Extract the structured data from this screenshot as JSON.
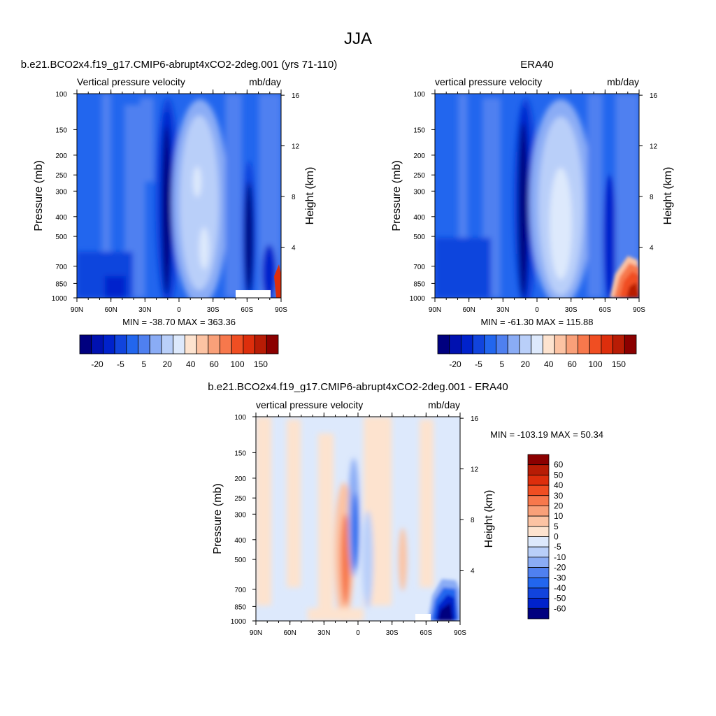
{
  "page_title": "JJA",
  "chart_data": [
    {
      "type": "heatmap",
      "title": "b.e21.BCO2x4.f19_g17.CMIP6-abrupt4xCO2-2deg.001 (yrs 71-110)",
      "left_label": "Vertical pressure velocity",
      "right_label": "mb/day",
      "ylabel": "Pressure (mb)",
      "ylabel_right": "Height (km)",
      "x_ticks": [
        "90N",
        "60N",
        "30N",
        "0",
        "30S",
        "60S",
        "90S"
      ],
      "xlim": [
        90,
        -90
      ],
      "y_ticks": [
        100,
        150,
        200,
        250,
        300,
        400,
        500,
        700,
        850,
        1000
      ],
      "ylim": [
        100,
        1000
      ],
      "y_log": true,
      "right_ticks": [
        16,
        12,
        8,
        4
      ],
      "stats": "MIN = -38.70  MAX = 363.36",
      "colorbar_labels": [
        "-20",
        "-5",
        "5",
        "20",
        "40",
        "60",
        "100",
        "150"
      ],
      "colorbar_colors": [
        "#00007f",
        "#0011b0",
        "#0022cc",
        "#1144dd",
        "#2266ee",
        "#4f80f0",
        "#8aacf5",
        "#b9cff9",
        "#dde9fc",
        "#fde3cf",
        "#fcc3a3",
        "#f9a079",
        "#f7784c",
        "#f04e22",
        "#dd2e0c",
        "#b81c05",
        "#8b0000"
      ],
      "field_description_colors": {
        "background": "#2266ee",
        "strong_ascent": "#00007f",
        "weak_descent": "#c7dcfb"
      }
    },
    {
      "type": "heatmap",
      "title": "ERA40",
      "left_label": "vertical pressure velocity",
      "right_label": "mb/day",
      "ylabel": "Pressure (mb)",
      "ylabel_right": "Height (km)",
      "x_ticks": [
        "90N",
        "60N",
        "30N",
        "0",
        "30S",
        "60S",
        "90S"
      ],
      "xlim": [
        90,
        -90
      ],
      "y_ticks": [
        100,
        150,
        200,
        250,
        300,
        400,
        500,
        700,
        850,
        1000
      ],
      "ylim": [
        100,
        1000
      ],
      "y_log": true,
      "right_ticks": [
        16,
        12,
        8,
        4
      ],
      "stats": "MIN = -61.30  MAX = 115.88",
      "colorbar_labels": [
        "-20",
        "-5",
        "5",
        "20",
        "40",
        "60",
        "100",
        "150"
      ],
      "colorbar_colors": [
        "#00007f",
        "#0011b0",
        "#0022cc",
        "#1144dd",
        "#2266ee",
        "#4f80f0",
        "#8aacf5",
        "#b9cff9",
        "#dde9fc",
        "#fde3cf",
        "#fcc3a3",
        "#f9a079",
        "#f7784c",
        "#f04e22",
        "#dd2e0c",
        "#b81c05",
        "#8b0000"
      ]
    },
    {
      "type": "heatmap",
      "title": "b.e21.BCO2x4.f19_g17.CMIP6-abrupt4xCO2-2deg.001 - ERA40",
      "left_label": "vertical pressure velocity",
      "right_label": "mb/day",
      "ylabel": "Pressure (mb)",
      "ylabel_right": "Height (km)",
      "x_ticks": [
        "90N",
        "60N",
        "30N",
        "0",
        "30S",
        "60S",
        "90S"
      ],
      "xlim": [
        90,
        -90
      ],
      "y_ticks": [
        100,
        150,
        200,
        250,
        300,
        400,
        500,
        700,
        850,
        1000
      ],
      "ylim": [
        100,
        1000
      ],
      "y_log": true,
      "right_ticks": [
        16,
        12,
        8,
        4
      ],
      "stats": "MIN = -103.19  MAX =  50.34",
      "colorbar_labels": [
        "60",
        "50",
        "40",
        "30",
        "20",
        "10",
        "5",
        "0",
        "-5",
        "-10",
        "-20",
        "-30",
        "-40",
        "-50",
        "-60"
      ],
      "colorbar_colors": [
        "#8b0000",
        "#b81c05",
        "#dd2e0c",
        "#f04e22",
        "#f7784c",
        "#f9a079",
        "#fcc3a3",
        "#fde3cf",
        "#dde9fc",
        "#b9cff9",
        "#8aacf5",
        "#4f80f0",
        "#2266ee",
        "#1144dd",
        "#0022cc",
        "#00007f"
      ]
    }
  ]
}
